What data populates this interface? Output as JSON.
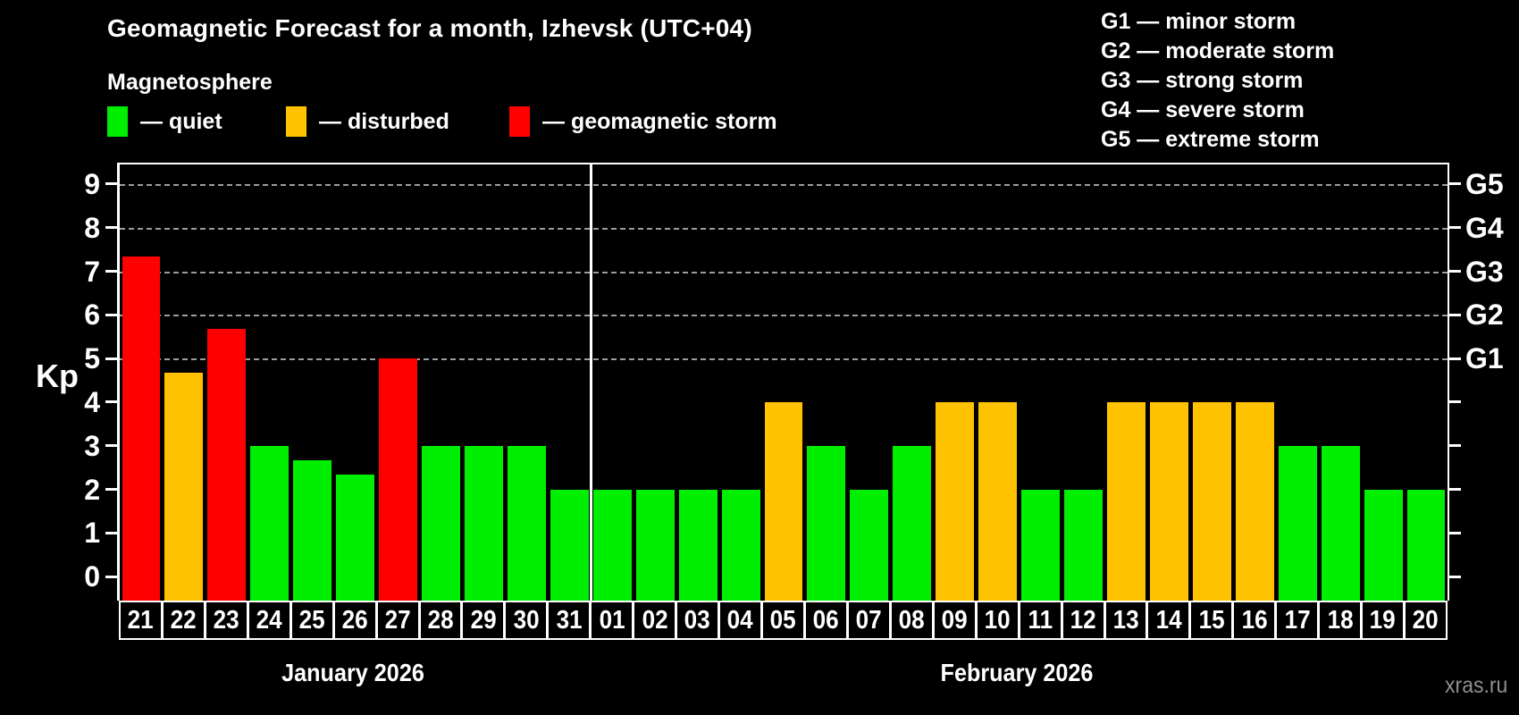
{
  "header": {
    "title": "Geomagnetic Forecast for a month, Izhevsk (UTC+04)",
    "subtitle": "Magnetosphere",
    "watermark": "xras.ru"
  },
  "legend": {
    "items": [
      {
        "label": "— quiet",
        "color": "#00ee00"
      },
      {
        "label": "— disturbed",
        "color": "#ffc200"
      },
      {
        "label": "— geomagnetic storm",
        "color": "#ff0000"
      }
    ]
  },
  "storm_scale_legend": {
    "items": [
      "G1 — minor storm",
      "G2 — moderate storm",
      "G3 — strong storm",
      "G4 — severe storm",
      "G5 — extreme storm"
    ]
  },
  "chart_data": {
    "type": "bar",
    "title": "Geomagnetic Forecast for a month, Izhevsk (UTC+04)",
    "ylabel": "Kp",
    "ylim": [
      0,
      9
    ],
    "y_ticks": [
      0,
      1,
      2,
      3,
      4,
      5,
      6,
      7,
      8,
      9
    ],
    "gridlines_at": [
      5,
      6,
      7,
      8,
      9
    ],
    "grid": "dashed horizontal at storm levels only",
    "right_axis_labels": [
      {
        "value": 5,
        "label": "G1"
      },
      {
        "value": 6,
        "label": "G2"
      },
      {
        "value": 7,
        "label": "G3"
      },
      {
        "value": 8,
        "label": "G4"
      },
      {
        "value": 9,
        "label": "G5"
      }
    ],
    "palette": {
      "quiet": "#00ee00",
      "disturbed": "#ffc200",
      "storm": "#ff0000",
      "disturbed_min": 4,
      "storm_min": 5
    },
    "months": [
      {
        "label": "January 2026",
        "days": [
          "21",
          "22",
          "23",
          "24",
          "25",
          "26",
          "27",
          "28",
          "29",
          "30",
          "31"
        ],
        "values": [
          7.33,
          4.67,
          5.67,
          3,
          2.67,
          2.33,
          5,
          3,
          3,
          3,
          2
        ]
      },
      {
        "label": "February 2026",
        "days": [
          "01",
          "02",
          "03",
          "04",
          "05",
          "06",
          "07",
          "08",
          "09",
          "10",
          "11",
          "12",
          "13",
          "14",
          "15",
          "16",
          "17",
          "18",
          "19",
          "20"
        ],
        "values": [
          2,
          2,
          2,
          2,
          4,
          3,
          2,
          3,
          4,
          4,
          2,
          2,
          4,
          4,
          4,
          4,
          3,
          3,
          2,
          2
        ]
      }
    ]
  }
}
